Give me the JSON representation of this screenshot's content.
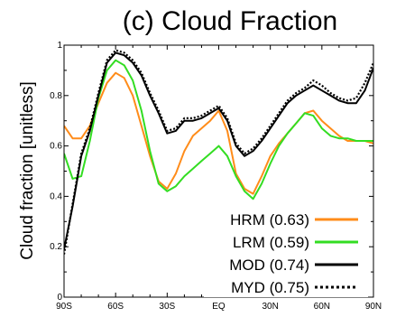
{
  "chart_data": {
    "type": "line",
    "title": "(c) Cloud Fraction",
    "xlabel": "",
    "ylabel": "Cloud fraction [unitless]",
    "xlim": [
      -90,
      90
    ],
    "ylim": [
      0,
      1
    ],
    "x_ticks": [
      {
        "value": -90,
        "label": "90S"
      },
      {
        "value": -60,
        "label": "60S"
      },
      {
        "value": -30,
        "label": "30S"
      },
      {
        "value": 0,
        "label": "EQ"
      },
      {
        "value": 30,
        "label": "30N"
      },
      {
        "value": 60,
        "label": "60N"
      },
      {
        "value": 90,
        "label": "90N"
      }
    ],
    "y_ticks": [
      {
        "value": 0,
        "label": "0"
      },
      {
        "value": 0.2,
        "label": "0.2"
      },
      {
        "value": 0.4,
        "label": "0.4"
      },
      {
        "value": 0.6,
        "label": "0.6"
      },
      {
        "value": 0.8,
        "label": "0.8"
      },
      {
        "value": 1,
        "label": "1"
      }
    ],
    "legend_position": "bottom-right",
    "grid": false,
    "x": [
      -90,
      -85,
      -80,
      -75,
      -70,
      -65,
      -60,
      -55,
      -50,
      -45,
      -40,
      -35,
      -30,
      -25,
      -20,
      -15,
      -10,
      -5,
      0,
      5,
      10,
      15,
      20,
      25,
      30,
      35,
      40,
      45,
      50,
      55,
      60,
      65,
      70,
      75,
      80,
      85,
      90
    ],
    "series": [
      {
        "name": "HRM (0.63)",
        "color": "#ff8c1a",
        "dash": "solid",
        "values": [
          0.68,
          0.63,
          0.63,
          0.68,
          0.77,
          0.85,
          0.89,
          0.87,
          0.8,
          0.68,
          0.56,
          0.46,
          0.43,
          0.49,
          0.58,
          0.64,
          0.67,
          0.7,
          0.74,
          0.66,
          0.49,
          0.43,
          0.41,
          0.48,
          0.56,
          0.61,
          0.65,
          0.69,
          0.73,
          0.74,
          0.7,
          0.67,
          0.64,
          0.62,
          0.62,
          0.62,
          0.61
        ]
      },
      {
        "name": "LRM (0.59)",
        "color": "#33dd22",
        "dash": "solid",
        "values": [
          0.57,
          0.47,
          0.48,
          0.62,
          0.79,
          0.9,
          0.94,
          0.92,
          0.86,
          0.74,
          0.58,
          0.45,
          0.42,
          0.44,
          0.48,
          0.51,
          0.54,
          0.57,
          0.6,
          0.56,
          0.48,
          0.42,
          0.39,
          0.45,
          0.53,
          0.6,
          0.65,
          0.69,
          0.73,
          0.72,
          0.67,
          0.64,
          0.63,
          0.63,
          0.62,
          0.62,
          0.62
        ]
      },
      {
        "name": "MOD (0.74)",
        "color": "#000000",
        "dash": "solid",
        "values": [
          0.19,
          0.36,
          0.56,
          0.66,
          0.8,
          0.93,
          0.97,
          0.96,
          0.93,
          0.88,
          0.8,
          0.73,
          0.65,
          0.66,
          0.7,
          0.7,
          0.71,
          0.73,
          0.75,
          0.7,
          0.6,
          0.56,
          0.58,
          0.62,
          0.67,
          0.72,
          0.77,
          0.8,
          0.82,
          0.84,
          0.82,
          0.8,
          0.78,
          0.77,
          0.77,
          0.82,
          0.91
        ]
      },
      {
        "name": "MYD (0.75)",
        "color": "#000000",
        "dash": "dotted",
        "values": [
          0.17,
          0.37,
          0.57,
          0.67,
          0.81,
          0.94,
          0.98,
          0.97,
          0.94,
          0.89,
          0.81,
          0.74,
          0.66,
          0.67,
          0.71,
          0.71,
          0.72,
          0.74,
          0.76,
          0.71,
          0.61,
          0.57,
          0.59,
          0.63,
          0.68,
          0.73,
          0.78,
          0.81,
          0.83,
          0.86,
          0.84,
          0.81,
          0.79,
          0.78,
          0.79,
          0.85,
          0.93
        ]
      }
    ]
  }
}
